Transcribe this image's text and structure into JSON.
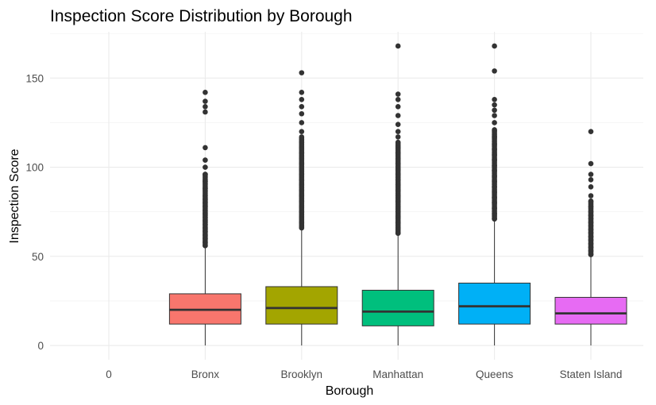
{
  "chart_data": {
    "type": "box",
    "title": "Inspection Score Distribution by Borough",
    "xlabel": "Borough",
    "ylabel": "Inspection Score",
    "categories": [
      "0",
      "Bronx",
      "Brooklyn",
      "Manhattan",
      "Queens",
      "Staten Island"
    ],
    "ylim": [
      -8,
      176
    ],
    "y_ticks": [
      0,
      50,
      100,
      150
    ],
    "grid": true,
    "legend": "none",
    "series": [
      {
        "category": "0",
        "box": null,
        "outliers": []
      },
      {
        "category": "Bronx",
        "color": "#F8766D",
        "box": {
          "whisker_low": 0,
          "q1": 12,
          "median": 20,
          "q3": 29,
          "whisker_high": 55
        },
        "outliers": [
          56,
          58,
          60,
          62,
          64,
          66,
          68,
          70,
          72,
          74,
          76,
          78,
          80,
          82,
          84,
          88,
          92,
          96,
          100,
          104,
          111,
          131,
          134,
          137,
          142
        ]
      },
      {
        "category": "Brooklyn",
        "color": "#A3A500",
        "box": {
          "whisker_low": 0,
          "q1": 12,
          "median": 21,
          "q3": 33,
          "whisker_high": 65
        },
        "outliers": [
          66,
          69,
          72,
          75,
          78,
          81,
          84,
          87,
          90,
          93,
          96,
          99,
          102,
          105,
          108,
          111,
          114,
          117,
          120,
          125,
          130,
          134,
          138,
          142,
          153
        ]
      },
      {
        "category": "Manhattan",
        "color": "#00BF7D",
        "box": {
          "whisker_low": 0,
          "q1": 11,
          "median": 19,
          "q3": 31,
          "whisker_high": 62
        },
        "outliers": [
          63,
          66,
          69,
          72,
          75,
          78,
          81,
          84,
          87,
          90,
          93,
          96,
          99,
          102,
          105,
          108,
          111,
          114,
          117,
          120,
          124,
          129,
          134,
          138,
          141,
          168
        ]
      },
      {
        "category": "Queens",
        "color": "#00B0F6",
        "box": {
          "whisker_low": 0,
          "q1": 12,
          "median": 22,
          "q3": 35,
          "whisker_high": 70
        },
        "outliers": [
          71,
          74,
          77,
          80,
          83,
          86,
          89,
          92,
          95,
          98,
          101,
          104,
          107,
          110,
          113,
          117,
          121,
          125,
          129,
          132,
          135,
          138,
          154,
          168
        ]
      },
      {
        "category": "Staten Island",
        "color": "#E76BF3",
        "box": {
          "whisker_low": 0,
          "q1": 12,
          "median": 18,
          "q3": 27,
          "whisker_high": 50
        },
        "outliers": [
          51,
          53,
          55,
          57,
          59,
          61,
          63,
          65,
          67,
          69,
          71,
          73,
          75,
          78,
          81,
          84,
          89,
          93,
          96,
          102,
          120
        ]
      }
    ]
  }
}
